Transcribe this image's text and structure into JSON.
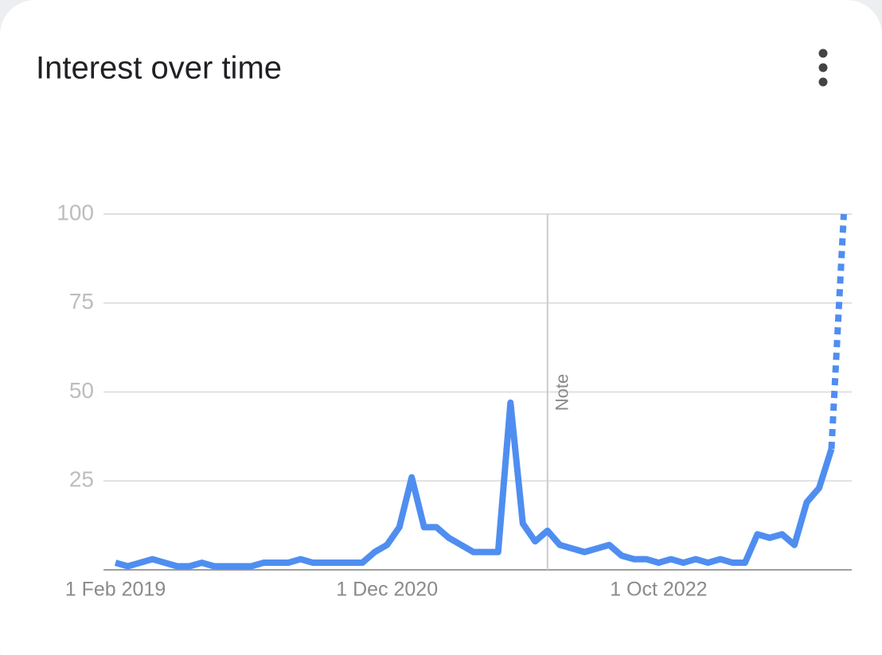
{
  "chart_data": {
    "type": "line",
    "title": "Interest over time",
    "categories": [
      "1 Feb 2019",
      null,
      null,
      null,
      null,
      null,
      null,
      null,
      null,
      null,
      null,
      null,
      null,
      null,
      null,
      null,
      null,
      null,
      null,
      null,
      null,
      null,
      "1 Dec 2020",
      null,
      null,
      null,
      null,
      null,
      null,
      null,
      null,
      null,
      null,
      null,
      null,
      null,
      null,
      null,
      null,
      null,
      null,
      null,
      null,
      null,
      "1 Oct 2022",
      null,
      null,
      null,
      null,
      null,
      null,
      null,
      null,
      null,
      null,
      null,
      null,
      null,
      null,
      null
    ],
    "series": [
      {
        "color": "#4f8ef0",
        "values": [
          2,
          1,
          2,
          3,
          2,
          1,
          1,
          2,
          1,
          1,
          1,
          1,
          2,
          2,
          2,
          3,
          2,
          2,
          2,
          2,
          2,
          5,
          7,
          12,
          26,
          12,
          12,
          9,
          7,
          5,
          5,
          5,
          47,
          13,
          8,
          11,
          7,
          6,
          5,
          6,
          7,
          4,
          3,
          3,
          2,
          3,
          2,
          3,
          2,
          3,
          2,
          2,
          10,
          9,
          10,
          7,
          19,
          23,
          34,
          100
        ]
      }
    ],
    "dashed_last_segment": true,
    "annotations": [
      {
        "text": "Note",
        "index": 35
      }
    ],
    "ylim": [
      0,
      100
    ],
    "yticks": [
      25,
      50,
      75,
      100
    ],
    "grid": true
  }
}
